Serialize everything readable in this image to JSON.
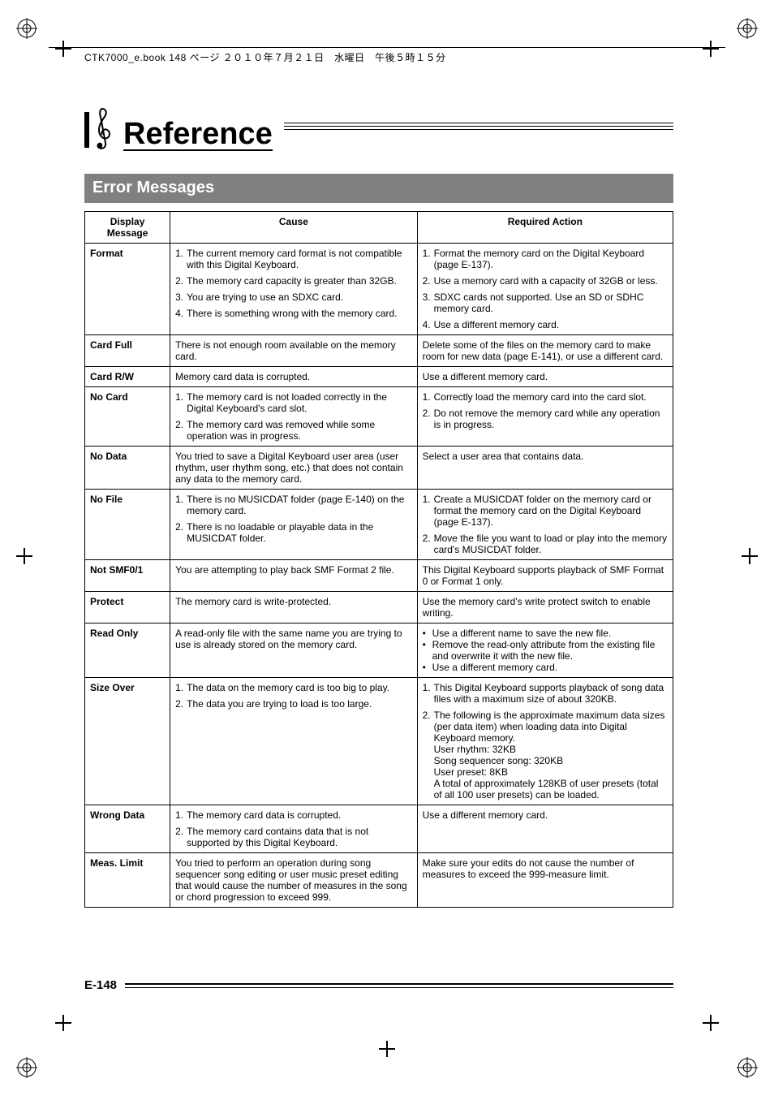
{
  "book_info": "CTK7000_e.book  148 ページ  ２０１０年７月２１日　水曜日　午後５時１５分",
  "title": "Reference",
  "section_title": "Error Messages",
  "page_number": "E-148",
  "table": {
    "headers": {
      "c1": "Display Message",
      "c2": "Cause",
      "c3": "Required Action"
    },
    "rows": [
      {
        "msg": "Format",
        "causes": [
          {
            "n": "1.",
            "t": "The current memory card format is not compatible with this Digital Keyboard."
          },
          {
            "n": "2.",
            "t": "The memory card capacity is greater than 32GB."
          },
          {
            "n": "3.",
            "t": "You are trying to use an SDXC card."
          },
          {
            "n": "4.",
            "t": "There is something wrong with the memory card."
          }
        ],
        "actions": [
          {
            "n": "1.",
            "t": "Format the memory card on the Digital Keyboard (page E-137)."
          },
          {
            "n": "2.",
            "t": "Use a memory card with a capacity of 32GB or less."
          },
          {
            "n": "3.",
            "t": "SDXC cards not supported. Use an SD or SDHC memory card."
          },
          {
            "n": "4.",
            "t": "Use a different memory card."
          }
        ]
      },
      {
        "msg": "Card Full",
        "causes": [
          {
            "n": "",
            "t": "There is not enough room available on the memory card."
          }
        ],
        "actions": [
          {
            "n": "",
            "t": "Delete some of the files on the memory card to make room for new data (page E-141), or use a different card."
          }
        ]
      },
      {
        "msg": "Card R/W",
        "causes": [
          {
            "n": "",
            "t": "Memory card data is corrupted."
          }
        ],
        "actions": [
          {
            "n": "",
            "t": "Use a different memory card."
          }
        ]
      },
      {
        "msg": "No Card",
        "causes": [
          {
            "n": "1.",
            "t": "The memory card is not loaded correctly in the Digital Keyboard's card slot."
          },
          {
            "n": "2.",
            "t": "The memory card was removed while some operation was in progress."
          }
        ],
        "actions": [
          {
            "n": "1.",
            "t": "Correctly load the memory card into the card slot."
          },
          {
            "n": "2.",
            "t": "Do not remove the memory card while any operation is in progress."
          }
        ]
      },
      {
        "msg": "No Data",
        "causes": [
          {
            "n": "",
            "t": "You tried to save a Digital Keyboard user area (user rhythm, user rhythm song, etc.) that does not contain any data to the memory card."
          }
        ],
        "actions": [
          {
            "n": "",
            "t": "Select a user area that contains data."
          }
        ]
      },
      {
        "msg": "No File",
        "causes": [
          {
            "n": "1.",
            "t": "There is no MUSICDAT folder (page E-140) on the memory card."
          },
          {
            "n": "2.",
            "t": "There is no loadable or playable data in the MUSICDAT folder."
          }
        ],
        "actions": [
          {
            "n": "1.",
            "t": "Create a MUSICDAT folder on the memory card or format the memory card on the Digital Keyboard (page E-137)."
          },
          {
            "n": "2.",
            "t": "Move the file you want to load or play into the memory card's MUSICDAT folder."
          }
        ]
      },
      {
        "msg": "Not SMF0/1",
        "causes": [
          {
            "n": "",
            "t": "You are attempting to play back SMF Format 2 file."
          }
        ],
        "actions": [
          {
            "n": "",
            "t": "This Digital Keyboard supports playback of SMF Format 0 or Format 1 only."
          }
        ]
      },
      {
        "msg": "Protect",
        "causes": [
          {
            "n": "",
            "t": "The memory card is write-protected."
          }
        ],
        "actions": [
          {
            "n": "",
            "t": "Use the memory card's write protect switch to enable writing."
          }
        ]
      },
      {
        "msg": "Read Only",
        "causes": [
          {
            "n": "",
            "t": "A read-only file with the same name you are trying to use is already stored on the memory card."
          }
        ],
        "actions_bullets": [
          "Use a different name to save the new file.",
          "Remove the read-only attribute from the existing file and overwrite it with the new file.",
          "Use a different memory card."
        ]
      },
      {
        "msg": "Size Over",
        "causes": [
          {
            "n": "1.",
            "t": "The data on the memory card is too big to play."
          },
          {
            "n": "2.",
            "t": "The data you are trying to load is too large."
          }
        ],
        "actions": [
          {
            "n": "1.",
            "t": "This Digital Keyboard supports playback of song data files with a maximum size of about 320KB."
          },
          {
            "n": "2.",
            "t": "The following is the approximate maximum data sizes (per data item) when loading data into Digital Keyboard memory.\nUser rhythm: 32KB\nSong sequencer song: 320KB\nUser preset: 8KB\nA total of approximately 128KB of user presets (total of all 100 user presets) can be loaded."
          }
        ]
      },
      {
        "msg": "Wrong Data",
        "causes": [
          {
            "n": "1.",
            "t": "The memory card data is corrupted."
          },
          {
            "n": "2.",
            "t": "The memory card contains data that is not supported by this Digital Keyboard."
          }
        ],
        "actions": [
          {
            "n": "",
            "t": "Use a different memory card."
          }
        ]
      },
      {
        "msg": "Meas. Limit",
        "causes": [
          {
            "n": "",
            "t": "You tried to perform an operation during song sequencer song editing or user music preset editing that would cause the number of measures in the song or chord progression to exceed 999."
          }
        ],
        "actions": [
          {
            "n": "",
            "t": "Make sure your edits do not cause the number of measures to exceed the 999-measure limit."
          }
        ]
      }
    ]
  }
}
